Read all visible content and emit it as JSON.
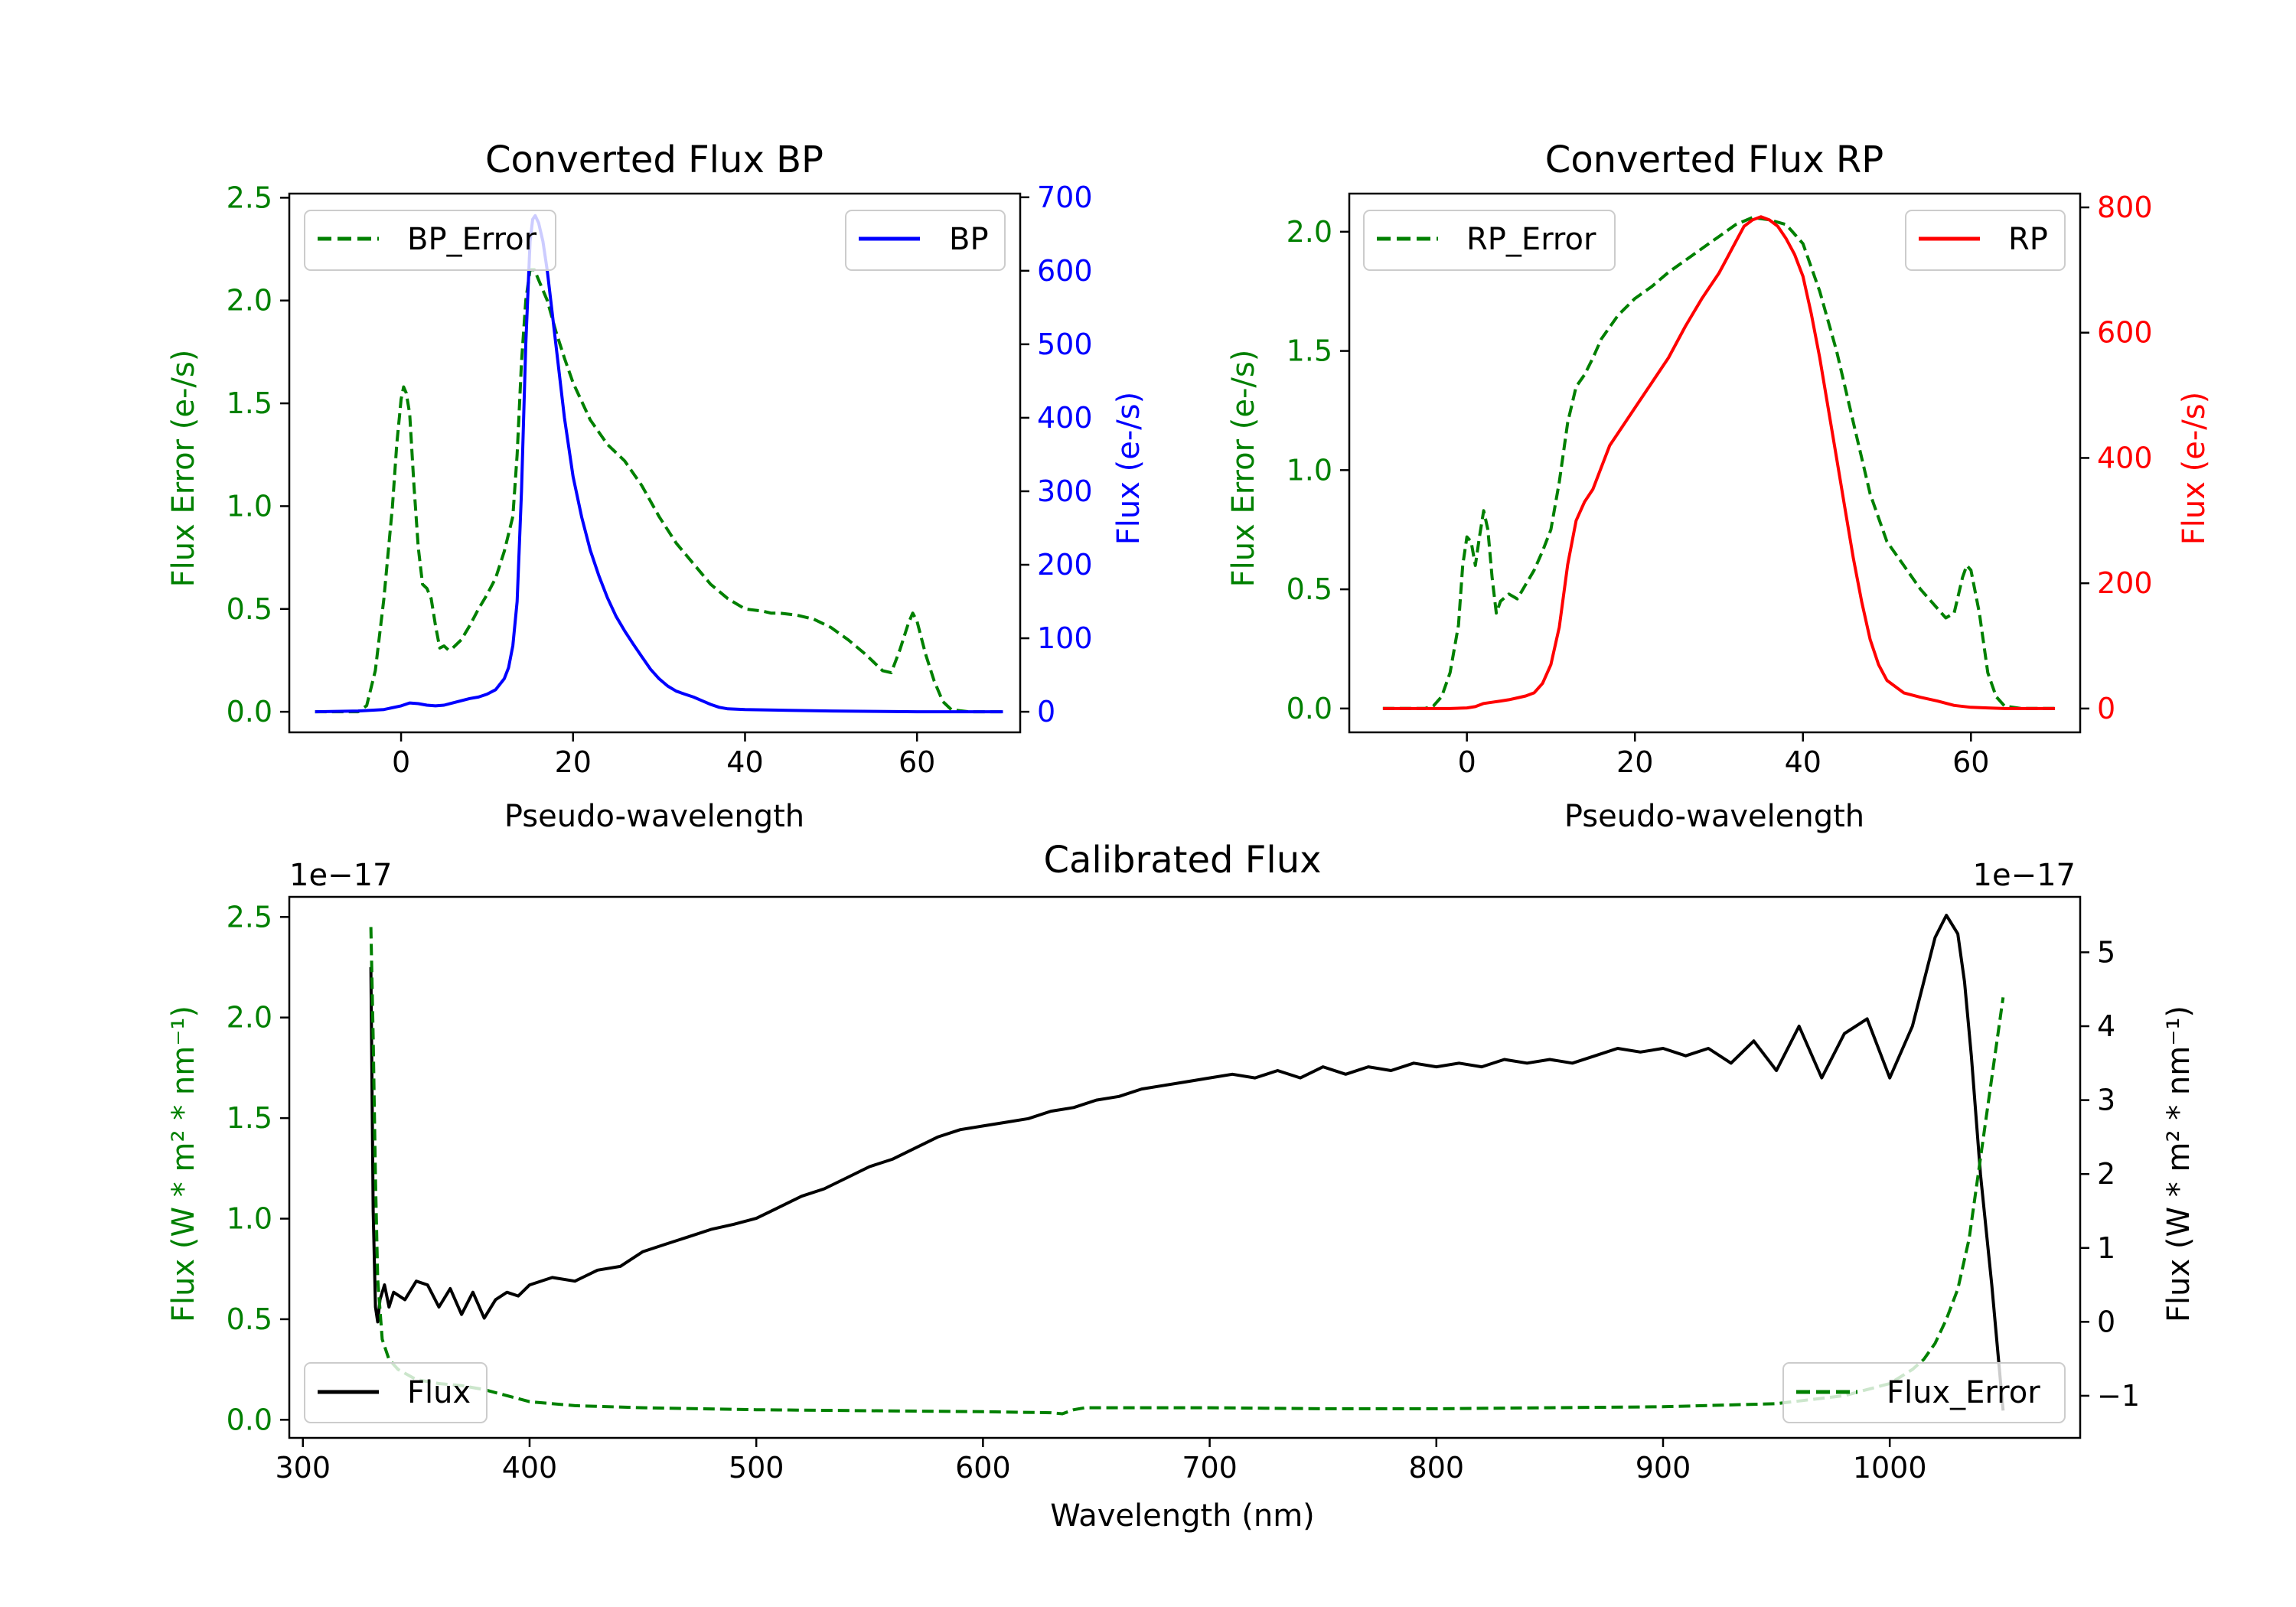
{
  "colors": {
    "green": "#008000",
    "blue": "#0000ff",
    "red": "#ff0000",
    "black": "#000000"
  },
  "chart_data": [
    {
      "id": "bp",
      "type": "line",
      "title": "Converted Flux BP",
      "xlabel": "Pseudo-wavelength",
      "ylabel_left": "Flux Error (e-/s)",
      "ylabel_right": "Flux (e-/s)",
      "xlim": [
        -13,
        72
      ],
      "ylim_left": [
        -0.1,
        2.52
      ],
      "ylim_right": [
        -28,
        705
      ],
      "xticks": [
        0,
        20,
        40,
        60
      ],
      "yticks_left": [
        0.0,
        0.5,
        1.0,
        1.5,
        2.0,
        2.5
      ],
      "yticks_right": [
        0,
        100,
        200,
        300,
        400,
        500,
        600,
        700
      ],
      "legend_left": {
        "label": "BP_Error",
        "position": "upper left"
      },
      "legend_right": {
        "label": "BP",
        "position": "upper right"
      },
      "series": [
        {
          "name": "BP_Error",
          "axis": "left",
          "style": "dashed",
          "color": "#008000",
          "x": [
            -10,
            -5,
            -4,
            -3,
            -2,
            -1,
            -0.5,
            0,
            0.3,
            0.6,
            1,
            1.5,
            2,
            2.5,
            3,
            3.5,
            4,
            4.5,
            5,
            5.5,
            6,
            7,
            8,
            9,
            10,
            11,
            12,
            13,
            13.5,
            14,
            14.5,
            15,
            15.5,
            16,
            17,
            18,
            19,
            20,
            22,
            24,
            26,
            28,
            30,
            32,
            34,
            36,
            38,
            40,
            42,
            43,
            44,
            46,
            48,
            50,
            52,
            54,
            56,
            57,
            58,
            59,
            59.5,
            60,
            61,
            62,
            63,
            64,
            66,
            70
          ],
          "y": [
            0.0,
            0.0,
            0.03,
            0.2,
            0.55,
            1.0,
            1.3,
            1.52,
            1.58,
            1.55,
            1.45,
            1.1,
            0.8,
            0.62,
            0.6,
            0.55,
            0.42,
            0.31,
            0.32,
            0.3,
            0.31,
            0.35,
            0.42,
            0.5,
            0.57,
            0.65,
            0.78,
            0.95,
            1.25,
            1.7,
            2.0,
            2.15,
            2.15,
            2.1,
            2.0,
            1.85,
            1.72,
            1.6,
            1.42,
            1.3,
            1.22,
            1.1,
            0.95,
            0.82,
            0.72,
            0.62,
            0.55,
            0.5,
            0.49,
            0.48,
            0.48,
            0.47,
            0.45,
            0.41,
            0.35,
            0.28,
            0.2,
            0.19,
            0.3,
            0.43,
            0.48,
            0.44,
            0.28,
            0.15,
            0.05,
            0.01,
            0.0,
            0.0
          ]
        },
        {
          "name": "BP",
          "axis": "right",
          "style": "solid",
          "color": "#0000ff",
          "x": [
            -10,
            -5,
            -2,
            0,
            1,
            2,
            3,
            4,
            5,
            6,
            7,
            8,
            9,
            10,
            11,
            12,
            12.5,
            13,
            13.5,
            14,
            14.5,
            15,
            15.3,
            15.6,
            16,
            16.5,
            17,
            18,
            19,
            20,
            21,
            22,
            23,
            24,
            25,
            26,
            27,
            28,
            29,
            30,
            31,
            32,
            33,
            34,
            35,
            36,
            37,
            38,
            40,
            45,
            50,
            55,
            60,
            65,
            70
          ],
          "y": [
            0,
            1,
            3,
            8,
            12,
            11,
            9,
            8,
            9,
            12,
            15,
            18,
            20,
            24,
            30,
            45,
            60,
            90,
            150,
            300,
            500,
            640,
            670,
            675,
            665,
            640,
            600,
            500,
            400,
            320,
            265,
            220,
            185,
            155,
            130,
            110,
            92,
            75,
            58,
            45,
            35,
            28,
            24,
            20,
            15,
            10,
            6,
            4,
            3,
            2,
            1,
            0.5,
            0,
            0,
            0
          ]
        }
      ]
    },
    {
      "id": "rp",
      "type": "line",
      "title": "Converted Flux RP",
      "xlabel": "Pseudo-wavelength",
      "ylabel_left": "Flux Error (e-/s)",
      "ylabel_right": "Flux (e-/s)",
      "xlim": [
        -14,
        73
      ],
      "ylim_left": [
        -0.1,
        2.16
      ],
      "ylim_right": [
        -38,
        822
      ],
      "xticks": [
        0,
        20,
        40,
        60
      ],
      "yticks_left": [
        0.0,
        0.5,
        1.0,
        1.5,
        2.0
      ],
      "yticks_right": [
        0,
        200,
        400,
        600,
        800
      ],
      "legend_left": {
        "label": "RP_Error",
        "position": "upper left"
      },
      "legend_right": {
        "label": "RP",
        "position": "upper right"
      },
      "series": [
        {
          "name": "RP_Error",
          "axis": "left",
          "style": "dashed",
          "color": "#008000",
          "x": [
            -10,
            -5,
            -4,
            -3,
            -2,
            -1,
            -0.5,
            0,
            0.5,
            1,
            1.5,
            2,
            2.5,
            3,
            3.5,
            4,
            5,
            6,
            7,
            8,
            9,
            10,
            11,
            12,
            13,
            14,
            15,
            16,
            17,
            18,
            20,
            22,
            24,
            26,
            28,
            30,
            32,
            34,
            36,
            38,
            40,
            42,
            44,
            46,
            48,
            50,
            52,
            54,
            56,
            57,
            58,
            59,
            59.5,
            60,
            61,
            62,
            63,
            64,
            66,
            70
          ],
          "y": [
            0,
            0,
            0.01,
            0.05,
            0.15,
            0.35,
            0.6,
            0.72,
            0.7,
            0.6,
            0.72,
            0.83,
            0.75,
            0.55,
            0.4,
            0.45,
            0.48,
            0.46,
            0.52,
            0.58,
            0.66,
            0.75,
            0.95,
            1.2,
            1.35,
            1.4,
            1.47,
            1.55,
            1.6,
            1.65,
            1.72,
            1.77,
            1.83,
            1.88,
            1.93,
            1.98,
            2.03,
            2.06,
            2.05,
            2.03,
            1.95,
            1.75,
            1.5,
            1.2,
            0.9,
            0.7,
            0.6,
            0.5,
            0.42,
            0.38,
            0.4,
            0.55,
            0.6,
            0.58,
            0.4,
            0.15,
            0.05,
            0.01,
            0,
            0
          ]
        },
        {
          "name": "RP",
          "axis": "right",
          "style": "solid",
          "color": "#ff0000",
          "x": [
            -10,
            -5,
            -2,
            0,
            1,
            2,
            3,
            4,
            5,
            6,
            7,
            8,
            9,
            10,
            11,
            12,
            13,
            14,
            15,
            16,
            17,
            18,
            20,
            22,
            24,
            26,
            28,
            30,
            31,
            32,
            33,
            34,
            35,
            36,
            37,
            38,
            39,
            40,
            41,
            42,
            43,
            44,
            45,
            46,
            47,
            48,
            49,
            50,
            52,
            54,
            56,
            58,
            60,
            62,
            64,
            66,
            70
          ],
          "y": [
            0,
            0,
            0,
            1,
            3,
            8,
            10,
            12,
            14,
            17,
            20,
            25,
            40,
            70,
            130,
            230,
            300,
            330,
            350,
            385,
            420,
            440,
            480,
            520,
            560,
            610,
            655,
            695,
            720,
            745,
            770,
            780,
            785,
            780,
            770,
            750,
            725,
            690,
            630,
            560,
            480,
            400,
            320,
            240,
            170,
            110,
            70,
            45,
            25,
            18,
            12,
            5,
            2,
            1,
            0,
            0,
            0
          ]
        }
      ]
    },
    {
      "id": "cal",
      "type": "line",
      "title": "Calibrated Flux",
      "xlabel": "Wavelength (nm)",
      "ylabel_left": "Flux (W * m² * nm⁻¹)",
      "ylabel_right": "Flux (W * m² * nm⁻¹)",
      "offset_left": "1e−17",
      "offset_right": "1e−17",
      "xlim": [
        294,
        1084
      ],
      "ylim_left": [
        -0.09,
        2.6
      ],
      "ylim_right": [
        -1.57,
        5.75
      ],
      "xticks": [
        300,
        400,
        500,
        600,
        700,
        800,
        900,
        1000
      ],
      "yticks_left": [
        0.0,
        0.5,
        1.0,
        1.5,
        2.0,
        2.5
      ],
      "yticks_right": [
        -1,
        0,
        1,
        2,
        3,
        4,
        5
      ],
      "legend_left": {
        "label": "Flux",
        "position": "lower left"
      },
      "legend_right": {
        "label": "Flux_Error",
        "position": "lower right"
      },
      "series": [
        {
          "name": "Flux",
          "axis": "right",
          "style": "solid",
          "color": "#000000",
          "x": [
            330,
            331,
            332,
            333,
            334,
            336,
            338,
            340,
            345,
            350,
            355,
            360,
            365,
            370,
            375,
            380,
            385,
            390,
            395,
            400,
            410,
            420,
            430,
            440,
            450,
            460,
            470,
            480,
            490,
            500,
            510,
            520,
            530,
            540,
            550,
            560,
            570,
            580,
            590,
            600,
            610,
            620,
            630,
            640,
            650,
            660,
            670,
            680,
            690,
            700,
            710,
            720,
            730,
            740,
            750,
            760,
            770,
            780,
            790,
            800,
            810,
            820,
            830,
            840,
            850,
            860,
            870,
            880,
            890,
            900,
            910,
            920,
            930,
            940,
            950,
            960,
            970,
            980,
            990,
            1000,
            1010,
            1015,
            1020,
            1025,
            1030,
            1033,
            1036,
            1040,
            1045,
            1050
          ],
          "y": [
            4.8,
            1.5,
            0.2,
            0.0,
            0.3,
            0.5,
            0.2,
            0.4,
            0.3,
            0.55,
            0.5,
            0.2,
            0.45,
            0.1,
            0.4,
            0.05,
            0.3,
            0.4,
            0.35,
            0.5,
            0.6,
            0.55,
            0.7,
            0.75,
            0.95,
            1.05,
            1.15,
            1.25,
            1.32,
            1.4,
            1.55,
            1.7,
            1.8,
            1.95,
            2.1,
            2.2,
            2.35,
            2.5,
            2.6,
            2.65,
            2.7,
            2.75,
            2.85,
            2.9,
            3.0,
            3.05,
            3.15,
            3.2,
            3.25,
            3.3,
            3.35,
            3.3,
            3.4,
            3.3,
            3.45,
            3.35,
            3.45,
            3.4,
            3.5,
            3.45,
            3.5,
            3.45,
            3.55,
            3.5,
            3.55,
            3.5,
            3.6,
            3.7,
            3.65,
            3.7,
            3.6,
            3.7,
            3.5,
            3.8,
            3.4,
            4.0,
            3.3,
            3.9,
            4.1,
            3.3,
            4.0,
            4.6,
            5.2,
            5.5,
            5.25,
            4.6,
            3.6,
            2.0,
            0.5,
            -1.2
          ]
        },
        {
          "name": "Flux_Error",
          "axis": "left",
          "style": "dashed",
          "color": "#008000",
          "x": [
            330,
            331,
            332,
            333,
            335,
            338,
            342,
            350,
            360,
            370,
            380,
            390,
            400,
            420,
            450,
            500,
            550,
            600,
            630,
            635,
            640,
            645,
            660,
            700,
            750,
            800,
            850,
            900,
            950,
            980,
            1000,
            1010,
            1015,
            1020,
            1025,
            1030,
            1035,
            1040,
            1045,
            1050
          ],
          "y": [
            2.45,
            1.9,
            1.2,
            0.7,
            0.4,
            0.3,
            0.25,
            0.2,
            0.18,
            0.17,
            0.15,
            0.12,
            0.09,
            0.07,
            0.06,
            0.05,
            0.045,
            0.04,
            0.035,
            0.03,
            0.05,
            0.06,
            0.06,
            0.06,
            0.055,
            0.055,
            0.06,
            0.065,
            0.08,
            0.12,
            0.18,
            0.25,
            0.3,
            0.38,
            0.5,
            0.65,
            0.9,
            1.3,
            1.7,
            2.1
          ]
        }
      ]
    }
  ]
}
